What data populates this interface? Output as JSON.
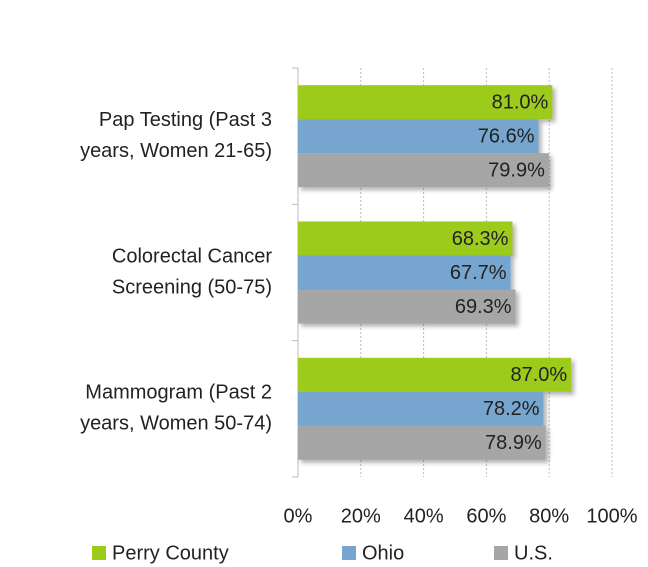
{
  "chart_data": {
    "type": "bar",
    "orientation": "horizontal",
    "categories": [
      [
        "Pap Testing (Past 3",
        "years, Women 21-65)"
      ],
      [
        "Colorectal Cancer",
        "Screening (50-75)"
      ],
      [
        "Mammogram (Past 2",
        "years, Women 50-74)"
      ]
    ],
    "series": [
      {
        "name": "Perry County",
        "color": "#9dcb1a",
        "values": [
          81.0,
          68.3,
          87.0
        ],
        "value_labels": [
          "81.0%",
          "68.3%",
          "87.0%"
        ]
      },
      {
        "name": "Ohio",
        "color": "#76a5cf",
        "values": [
          76.6,
          67.7,
          78.2
        ],
        "value_labels": [
          "76.6%",
          "67.7%",
          "78.2%"
        ]
      },
      {
        "name": "U.S.",
        "color": "#a6a6a6",
        "values": [
          79.9,
          69.3,
          78.9
        ],
        "value_labels": [
          "79.9%",
          "69.3%",
          "78.9%"
        ]
      }
    ],
    "xlim": [
      0,
      100
    ],
    "xticks": [
      {
        "value": 0,
        "label": "0%"
      },
      {
        "value": 20,
        "label": "20%"
      },
      {
        "value": 40,
        "label": "40%"
      },
      {
        "value": 60,
        "label": "60%"
      },
      {
        "value": 80,
        "label": "80%"
      },
      {
        "value": 100,
        "label": "100%"
      }
    ],
    "grid": true,
    "legend": "bottom"
  }
}
